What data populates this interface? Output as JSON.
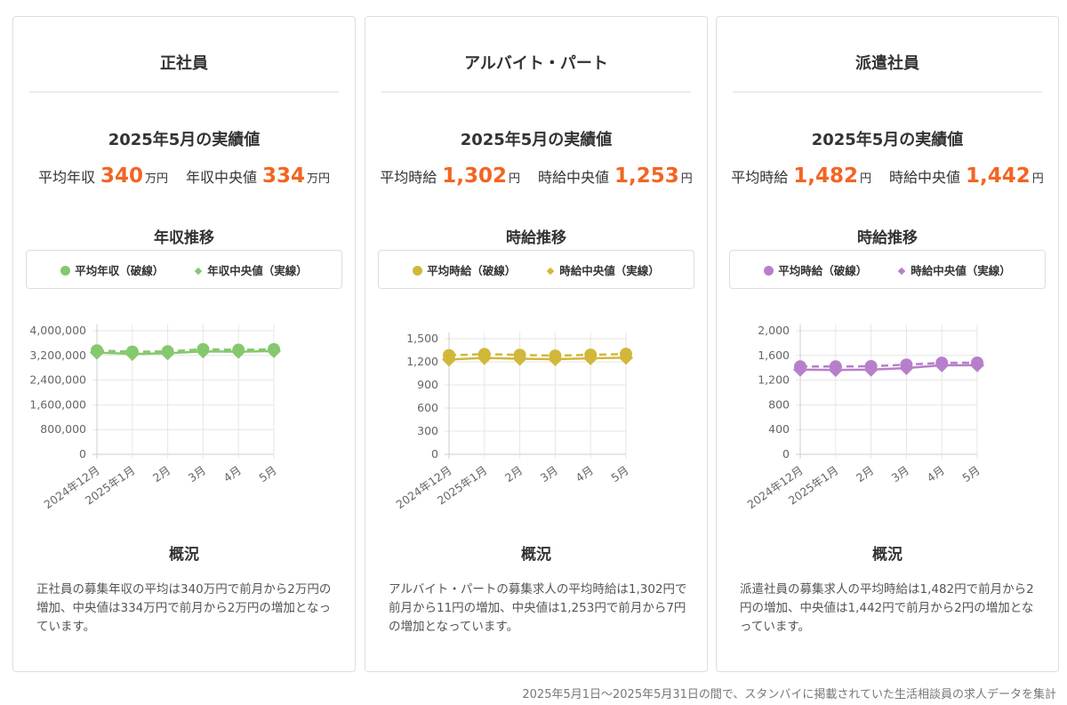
{
  "cards": [
    {
      "title": "正社員",
      "subtitle": "2025年5月の実績値",
      "stat1_label": "平均年収",
      "stat1_value": "340",
      "stat1_unit": "万円",
      "stat2_label": "年収中央値",
      "stat2_value": "334",
      "stat2_unit": "万円",
      "chart_title": "年収推移",
      "legend1": "平均年収（破線）",
      "legend2": "年収中央値（実線）",
      "color": "#86c86e",
      "overview_title": "概況",
      "overview_text": "正社員の募集年収の平均は340万円で前月から2万円の増加、中央値は334万円で前月から2万円の増加となっています。"
    },
    {
      "title": "アルバイト・パート",
      "subtitle": "2025年5月の実績値",
      "stat1_label": "平均時給",
      "stat1_value": "1,302",
      "stat1_unit": "円",
      "stat2_label": "時給中央値",
      "stat2_value": "1,253",
      "stat2_unit": "円",
      "chart_title": "時給推移",
      "legend1": "平均時給（破線）",
      "legend2": "時給中央値（実線）",
      "color": "#d1b83a",
      "overview_title": "概況",
      "overview_text": "アルバイト・パートの募集求人の平均時給は1,302円で前月から11円の増加、中央値は1,253円で前月から7円の増加となっています。"
    },
    {
      "title": "派遣社員",
      "subtitle": "2025年5月の実績値",
      "stat1_label": "平均時給",
      "stat1_value": "1,482",
      "stat1_unit": "円",
      "stat2_label": "時給中央値",
      "stat2_value": "1,442",
      "stat2_unit": "円",
      "chart_title": "時給推移",
      "legend1": "平均時給（破線）",
      "legend2": "時給中央値（実線）",
      "color": "#b77fcb",
      "overview_title": "概況",
      "overview_text": "派遣社員の募集求人の平均時給は1,482円で前月から2円の増加、中央値は1,442円で前月から2円の増加となっています。"
    }
  ],
  "footer": "2025年5月1日〜2025年5月31日の間で、スタンバイに掲載されていた生活相談員の求人データを集計",
  "chart_data": [
    {
      "type": "line",
      "categories": [
        "2024年12月",
        "2025年1月",
        "2月",
        "3月",
        "4月",
        "5月"
      ],
      "ylim": [
        0,
        4000000
      ],
      "yticks": [
        "0",
        "800,000",
        "1,600,000",
        "2,400,000",
        "3,200,000",
        "4,000,000"
      ],
      "ytick_values": [
        0,
        800000,
        1600000,
        2400000,
        3200000,
        4000000
      ],
      "grid": true,
      "series": [
        {
          "name": "平均年収（破線）",
          "style": "dashed",
          "values": [
            3360000,
            3320000,
            3330000,
            3400000,
            3380000,
            3400000
          ]
        },
        {
          "name": "年収中央値（実線）",
          "style": "solid",
          "values": [
            3290000,
            3250000,
            3270000,
            3330000,
            3320000,
            3340000
          ]
        }
      ]
    },
    {
      "type": "line",
      "categories": [
        "2024年12月",
        "2025年1月",
        "2月",
        "3月",
        "4月",
        "5月"
      ],
      "ylim": [
        0,
        1500
      ],
      "yticks": [
        "0",
        "300",
        "600",
        "900",
        "1,200",
        "1,500"
      ],
      "ytick_values": [
        0,
        300,
        600,
        900,
        1200,
        1500
      ],
      "grid": true,
      "series": [
        {
          "name": "平均時給（破線）",
          "style": "dashed",
          "values": [
            1285,
            1300,
            1290,
            1280,
            1291,
            1302
          ]
        },
        {
          "name": "時給中央値（実線）",
          "style": "solid",
          "values": [
            1230,
            1250,
            1240,
            1235,
            1246,
            1253
          ]
        }
      ]
    },
    {
      "type": "line",
      "categories": [
        "2024年12月",
        "2025年1月",
        "2月",
        "3月",
        "4月",
        "5月"
      ],
      "ylim": [
        0,
        2000
      ],
      "yticks": [
        "0",
        "400",
        "800",
        "1,200",
        "1,600",
        "2,000"
      ],
      "ytick_values": [
        0,
        400,
        800,
        1200,
        1600,
        2000
      ],
      "grid": true,
      "series": [
        {
          "name": "平均時給（破線）",
          "style": "dashed",
          "values": [
            1420,
            1420,
            1425,
            1450,
            1480,
            1482
          ]
        },
        {
          "name": "時給中央値（実線）",
          "style": "solid",
          "values": [
            1370,
            1365,
            1370,
            1395,
            1440,
            1442
          ]
        }
      ]
    }
  ]
}
